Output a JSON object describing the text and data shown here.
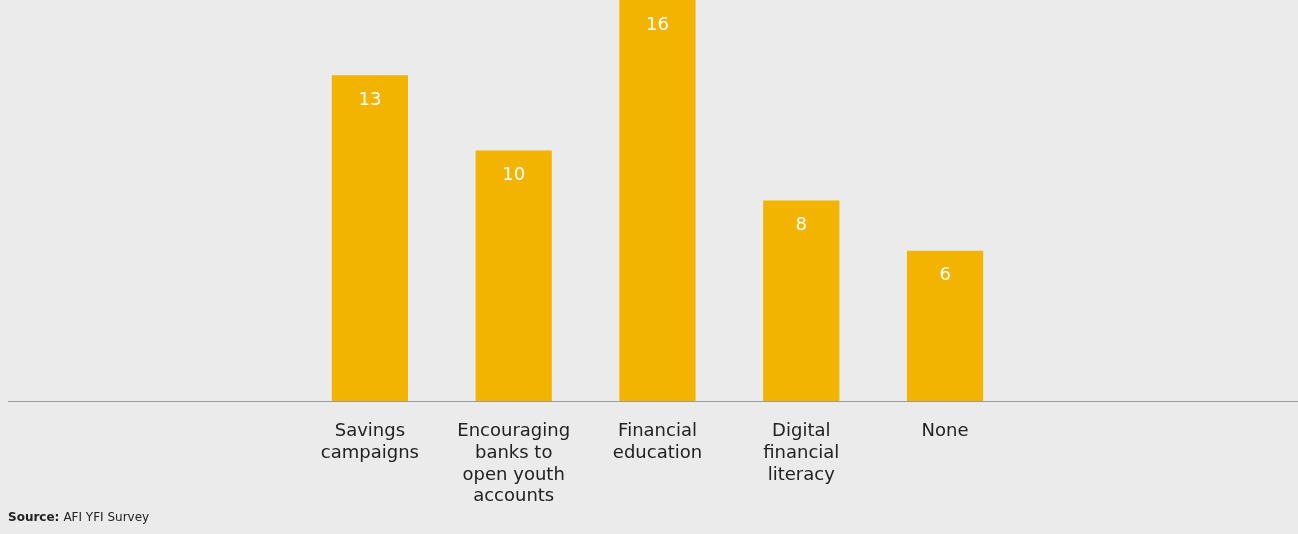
{
  "chart_data": {
    "type": "bar",
    "categories": [
      "Savings campaigns",
      "Encouraging banks to open youth accounts",
      "Financial education",
      "Digital financial literacy",
      "None"
    ],
    "values": [
      13,
      10,
      16,
      8,
      6
    ],
    "color": "#f2b400",
    "data_labels": true,
    "grid": false,
    "legend": false,
    "tick_labels": "x",
    "annotations": [
      "Source: AFI YFI Survey"
    ]
  }
}
